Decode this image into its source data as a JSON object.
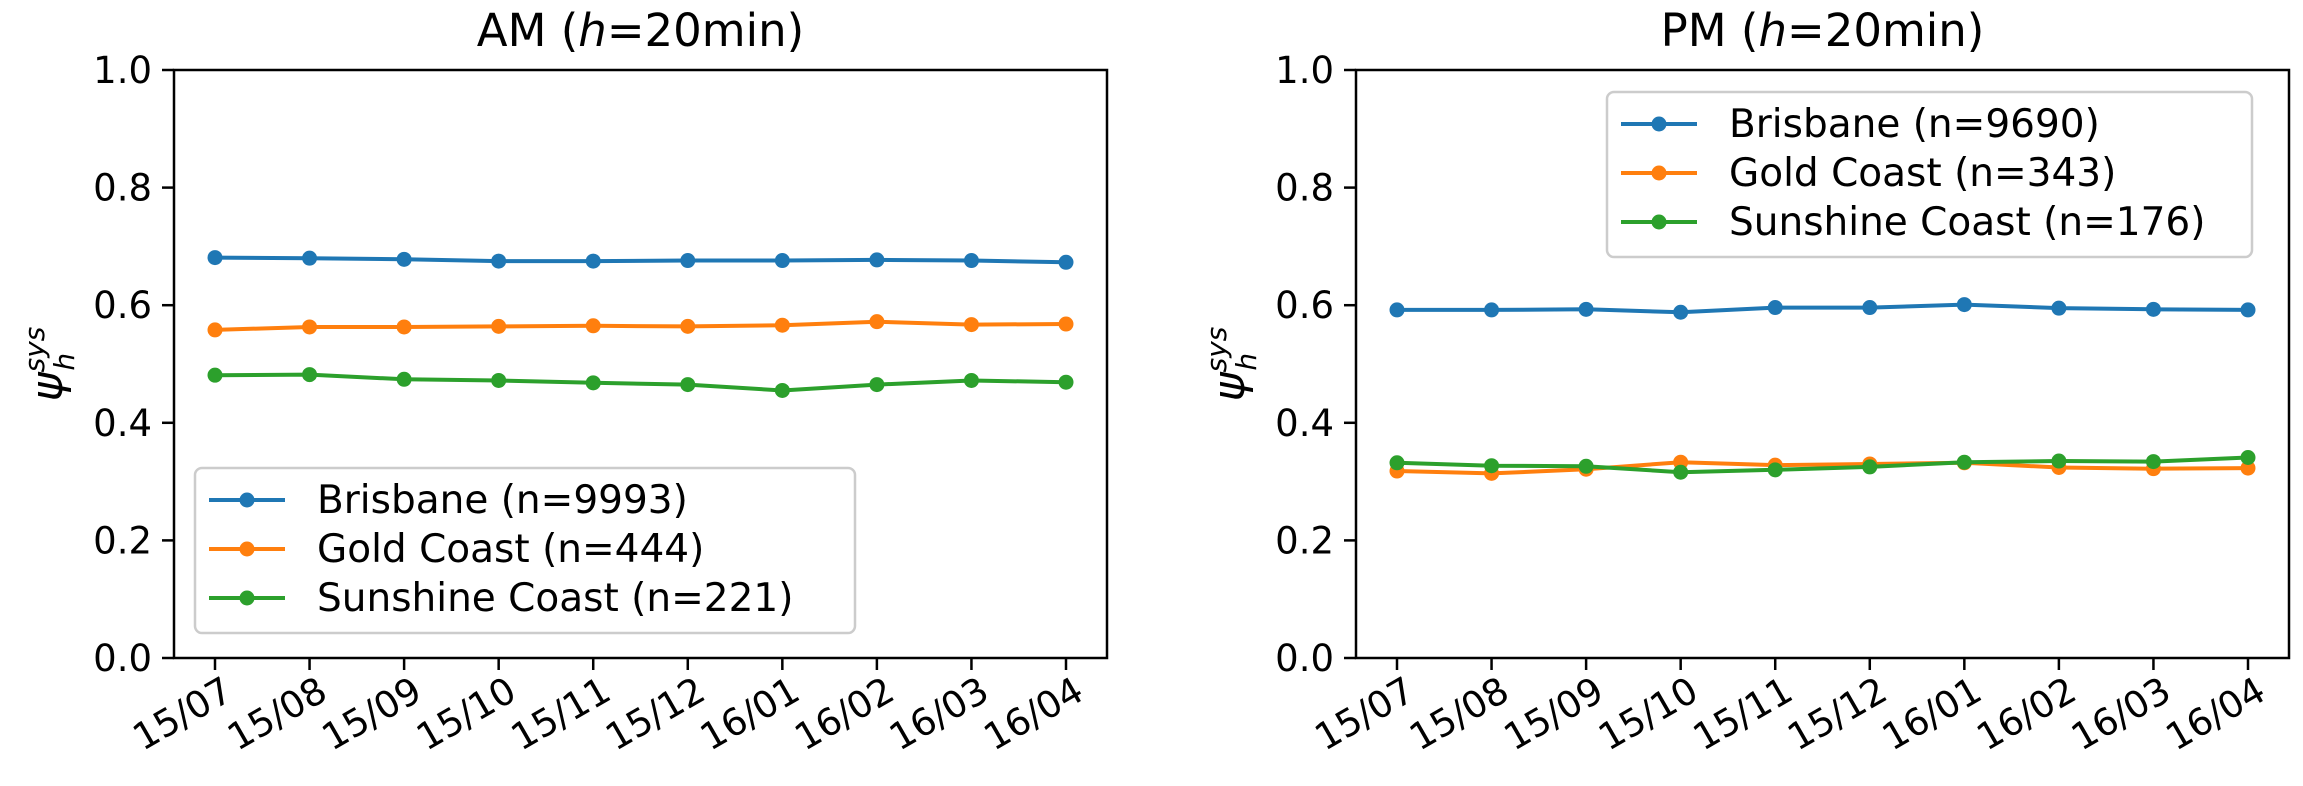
{
  "colors": {
    "Brisbane": "#1f77b4",
    "Gold Coast": "#ff7f0e",
    "Sunshine Coast": "#2ca02c"
  },
  "chart_data": [
    {
      "type": "line",
      "title_prefix": "AM (",
      "title_var": "h",
      "title_suffix": "=20min)",
      "ylabel": "ψ",
      "ylabel_sup": "sys",
      "ylabel_sub": "h",
      "xlabel": "",
      "ylim": [
        0.0,
        1.0
      ],
      "yticks": [
        "0.0",
        "0.2",
        "0.4",
        "0.6",
        "0.8",
        "1.0"
      ],
      "categories": [
        "15/07",
        "15/08",
        "15/09",
        "15/10",
        "15/11",
        "15/12",
        "16/01",
        "16/02",
        "16/03",
        "16/04"
      ],
      "legend_position": "lower-left",
      "grid": false,
      "series": [
        {
          "name": "Brisbane (n=9993)",
          "color_key": "Brisbane",
          "values": [
            0.681,
            0.68,
            0.678,
            0.675,
            0.675,
            0.676,
            0.676,
            0.677,
            0.676,
            0.673
          ]
        },
        {
          "name": "Gold Coast (n=444)",
          "color_key": "Gold Coast",
          "values": [
            0.558,
            0.563,
            0.563,
            0.564,
            0.565,
            0.564,
            0.566,
            0.572,
            0.567,
            0.568
          ]
        },
        {
          "name": "Sunshine Coast (n=221)",
          "color_key": "Sunshine Coast",
          "values": [
            0.481,
            0.482,
            0.474,
            0.472,
            0.468,
            0.465,
            0.455,
            0.465,
            0.472,
            0.469
          ]
        }
      ]
    },
    {
      "type": "line",
      "title_prefix": "PM (",
      "title_var": "h",
      "title_suffix": "=20min)",
      "ylabel": "ψ",
      "ylabel_sup": "sys",
      "ylabel_sub": "h",
      "xlabel": "",
      "ylim": [
        0.0,
        1.0
      ],
      "yticks": [
        "0.0",
        "0.2",
        "0.4",
        "0.6",
        "0.8",
        "1.0"
      ],
      "categories": [
        "15/07",
        "15/08",
        "15/09",
        "15/10",
        "15/11",
        "15/12",
        "16/01",
        "16/02",
        "16/03",
        "16/04"
      ],
      "legend_position": "upper-right",
      "grid": false,
      "series": [
        {
          "name": "Brisbane (n=9690)",
          "color_key": "Brisbane",
          "values": [
            0.592,
            0.592,
            0.593,
            0.588,
            0.596,
            0.596,
            0.601,
            0.595,
            0.593,
            0.592
          ]
        },
        {
          "name": "Gold Coast (n=343)",
          "color_key": "Gold Coast",
          "values": [
            0.318,
            0.314,
            0.321,
            0.333,
            0.328,
            0.33,
            0.332,
            0.324,
            0.322,
            0.323
          ]
        },
        {
          "name": "Sunshine Coast (n=176)",
          "color_key": "Sunshine Coast",
          "values": [
            0.332,
            0.327,
            0.326,
            0.316,
            0.32,
            0.325,
            0.333,
            0.335,
            0.334,
            0.341
          ]
        }
      ]
    }
  ]
}
